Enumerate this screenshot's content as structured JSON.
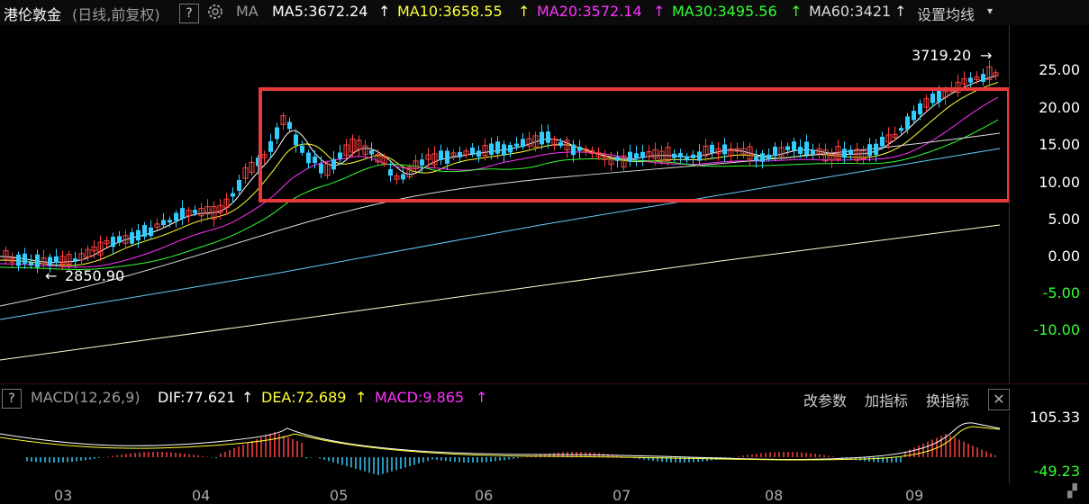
{
  "header": {
    "title": "港伦敦金",
    "period": "(日线,前复权)",
    "help": "?",
    "ma_label": "MA",
    "ma5": "MA5:3672.24",
    "ma10": "MA10:3658.55",
    "ma20": "MA20:3572.14",
    "ma30": "MA30:3495.56",
    "ma60": "MA60:3421",
    "settings": "设置均线",
    "arrow": "↑"
  },
  "main_chart": {
    "y_ticks": [
      "25.00",
      "20.00",
      "15.00",
      "10.00",
      "5.00",
      "0.00",
      "-5.00",
      "-10.00"
    ],
    "high_label": "3719.20",
    "low_label": "2850.90"
  },
  "macd": {
    "title": "MACD(12,26,9)",
    "dif": "DIF:77.621",
    "dea": "DEA:72.689",
    "macd": "MACD:9.865",
    "arrow": "↑",
    "btn_params": "改参数",
    "btn_add": "加指标",
    "btn_switch": "换指标",
    "close": "✕",
    "y_top": "105.33",
    "y_bottom": "-49.23"
  },
  "x_axis": [
    "03",
    "04",
    "05",
    "06",
    "07",
    "08",
    "09"
  ],
  "colors": {
    "up": "#ff4040",
    "down": "#33ccff",
    "ma5": "#ffffff",
    "ma10": "#ffff33",
    "ma20": "#ff33ff",
    "ma30": "#33ff33",
    "ma60": "#cccccc",
    "highlight": "#e83a3a"
  }
}
